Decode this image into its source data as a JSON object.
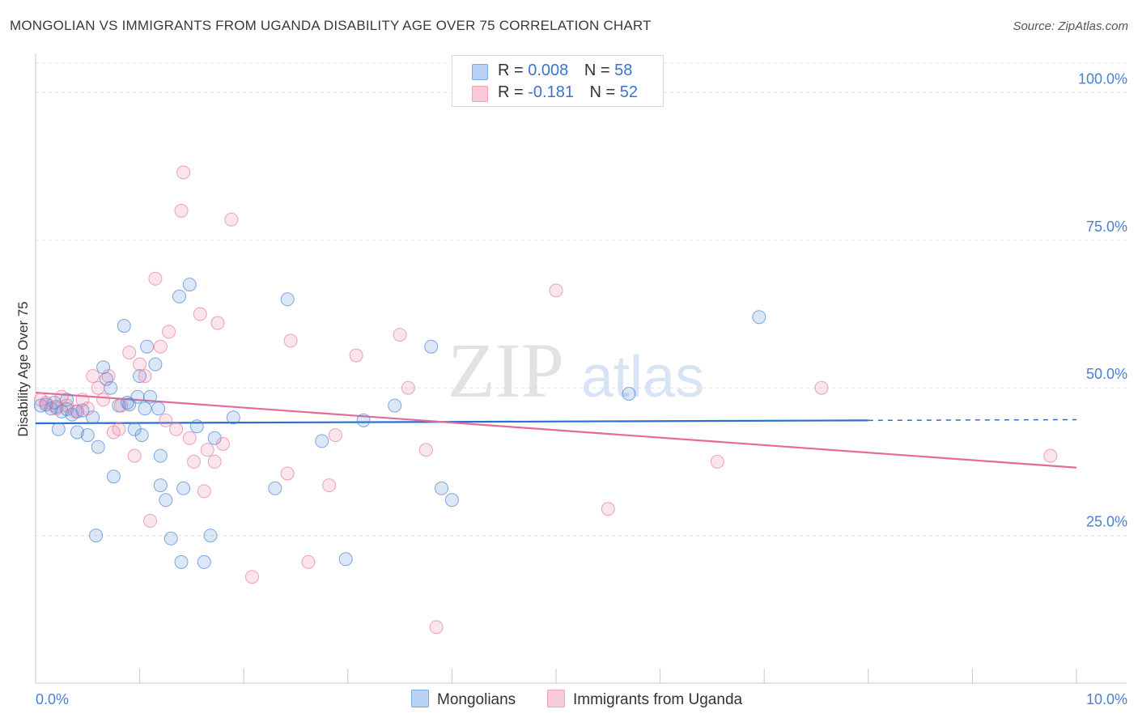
{
  "header": {
    "title": "MONGOLIAN VS IMMIGRANTS FROM UGANDA DISABILITY AGE OVER 75 CORRELATION CHART",
    "source": "Source: ZipAtlas.com"
  },
  "watermark": {
    "zip": "ZIP",
    "atlas": "atlas"
  },
  "legend": {
    "rows": [
      {
        "r_label": "R = ",
        "r_value": "0.008",
        "n_label": "N = ",
        "n_value": "58",
        "color": "#7aa7e8",
        "fill": "#b9d2f5"
      },
      {
        "r_label": "R = ",
        "r_value": "-0.181",
        "n_label": "N = ",
        "n_value": "52",
        "color": "#f0a0b8",
        "fill": "#f9cad8"
      }
    ]
  },
  "bottom_legend": {
    "items": [
      {
        "label": "Mongolians",
        "color": "#7aa7e8",
        "fill": "#b9d2f5"
      },
      {
        "label": "Immigrants from Uganda",
        "color": "#f0a0b8",
        "fill": "#f9cad8"
      }
    ]
  },
  "chart_data": {
    "type": "scatter",
    "title": "MONGOLIAN VS IMMIGRANTS FROM UGANDA DISABILITY AGE OVER 75 CORRELATION CHART",
    "xlabel": "",
    "ylabel": "Disability Age Over 75",
    "xlim": [
      0,
      10
    ],
    "ylim": [
      0,
      105
    ],
    "x_tick_labels": [
      "0.0%",
      "10.0%"
    ],
    "y_ticks": [
      25,
      50,
      75,
      100
    ],
    "y_tick_labels": [
      "25.0%",
      "50.0%",
      "75.0%",
      "100.0%"
    ],
    "grid": true,
    "legend_position": "top-center",
    "series": [
      {
        "name": "Mongolians",
        "color": "#4a86d8",
        "line_color": "#2a6fcf",
        "trend": {
          "x": [
            0,
            8.0
          ],
          "y": [
            44.0,
            44.5
          ],
          "dashed_to": 10.0
        },
        "points": [
          [
            0.05,
            47.0
          ],
          [
            0.1,
            47.2
          ],
          [
            0.15,
            46.5
          ],
          [
            0.2,
            46.8
          ],
          [
            0.25,
            46.0
          ],
          [
            0.3,
            46.4
          ],
          [
            0.35,
            45.5
          ],
          [
            0.4,
            46.0
          ],
          [
            0.45,
            46.2
          ],
          [
            0.22,
            43.0
          ],
          [
            0.4,
            42.5
          ],
          [
            0.5,
            42.0
          ],
          [
            0.55,
            45.0
          ],
          [
            0.6,
            40.0
          ],
          [
            0.65,
            53.5
          ],
          [
            0.68,
            51.5
          ],
          [
            0.72,
            50.0
          ],
          [
            0.75,
            35.0
          ],
          [
            0.8,
            47.0
          ],
          [
            0.85,
            60.5
          ],
          [
            0.88,
            47.5
          ],
          [
            0.9,
            47.2
          ],
          [
            0.95,
            43.0
          ],
          [
            0.98,
            48.5
          ],
          [
            1.0,
            52.0
          ],
          [
            1.02,
            42.0
          ],
          [
            1.05,
            46.5
          ],
          [
            1.07,
            57.0
          ],
          [
            1.1,
            48.5
          ],
          [
            1.15,
            54.0
          ],
          [
            1.2,
            38.5
          ],
          [
            1.2,
            33.5
          ],
          [
            1.25,
            31.0
          ],
          [
            1.3,
            24.5
          ],
          [
            1.38,
            65.5
          ],
          [
            1.4,
            20.5
          ],
          [
            1.42,
            33.0
          ],
          [
            1.48,
            67.5
          ],
          [
            1.55,
            43.5
          ],
          [
            1.62,
            20.5
          ],
          [
            1.68,
            25.0
          ],
          [
            1.72,
            41.5
          ],
          [
            1.9,
            45.0
          ],
          [
            2.3,
            33.0
          ],
          [
            2.42,
            65.0
          ],
          [
            2.75,
            41.0
          ],
          [
            2.98,
            21.0
          ],
          [
            3.15,
            44.5
          ],
          [
            3.45,
            47.0
          ],
          [
            3.8,
            57.0
          ],
          [
            3.9,
            33.0
          ],
          [
            4.0,
            31.0
          ],
          [
            5.7,
            49.0
          ],
          [
            6.95,
            62.0
          ],
          [
            0.58,
            25.0
          ],
          [
            1.18,
            46.5
          ],
          [
            0.3,
            48.0
          ],
          [
            0.18,
            47.5
          ]
        ]
      },
      {
        "name": "Immigrants from Uganda",
        "color": "#e97ca0",
        "line_color": "#e46b98",
        "trend": {
          "x": [
            0,
            10.0
          ],
          "y": [
            49.2,
            36.5
          ]
        },
        "points": [
          [
            0.05,
            48.0
          ],
          [
            0.1,
            47.5
          ],
          [
            0.2,
            46.5
          ],
          [
            0.3,
            47.0
          ],
          [
            0.38,
            46.0
          ],
          [
            0.45,
            48.0
          ],
          [
            0.5,
            46.5
          ],
          [
            0.55,
            52.0
          ],
          [
            0.6,
            50.0
          ],
          [
            0.65,
            48.0
          ],
          [
            0.7,
            52.0
          ],
          [
            0.75,
            42.5
          ],
          [
            0.8,
            43.0
          ],
          [
            0.82,
            47.0
          ],
          [
            0.9,
            56.0
          ],
          [
            0.95,
            38.5
          ],
          [
            1.0,
            54.0
          ],
          [
            1.05,
            52.0
          ],
          [
            1.1,
            27.5
          ],
          [
            1.15,
            68.5
          ],
          [
            1.2,
            57.0
          ],
          [
            1.25,
            44.5
          ],
          [
            1.28,
            59.5
          ],
          [
            1.35,
            43.0
          ],
          [
            1.4,
            80.0
          ],
          [
            1.42,
            86.5
          ],
          [
            1.48,
            41.5
          ],
          [
            1.52,
            37.5
          ],
          [
            1.58,
            62.5
          ],
          [
            1.62,
            32.5
          ],
          [
            1.65,
            39.5
          ],
          [
            1.72,
            37.5
          ],
          [
            1.75,
            61.0
          ],
          [
            1.8,
            40.5
          ],
          [
            1.88,
            78.5
          ],
          [
            2.08,
            18.0
          ],
          [
            2.42,
            35.5
          ],
          [
            2.45,
            58.0
          ],
          [
            2.62,
            20.5
          ],
          [
            2.82,
            33.5
          ],
          [
            2.88,
            42.0
          ],
          [
            3.08,
            55.5
          ],
          [
            3.5,
            59.0
          ],
          [
            3.58,
            50.0
          ],
          [
            3.75,
            39.5
          ],
          [
            3.85,
            9.5
          ],
          [
            5.0,
            66.5
          ],
          [
            5.5,
            29.5
          ],
          [
            6.55,
            37.5
          ],
          [
            7.55,
            50.0
          ],
          [
            9.75,
            38.5
          ],
          [
            0.25,
            48.5
          ]
        ]
      }
    ]
  }
}
